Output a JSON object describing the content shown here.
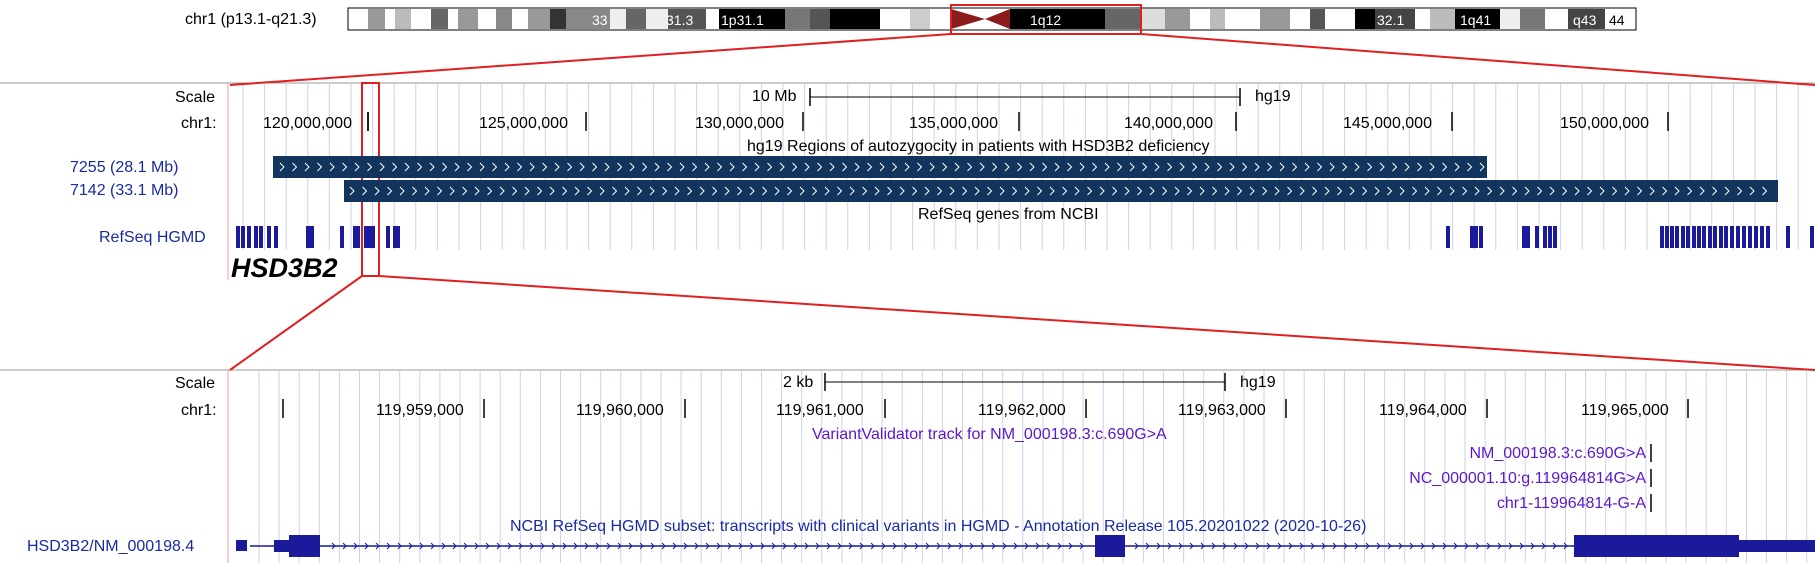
{
  "ideogram": {
    "label": "chr1 (p13.1-q21.3)",
    "bands": [
      "33",
      "31.3",
      "1p31.1",
      "1q12",
      "32.1",
      "1q41",
      "q43",
      "44"
    ]
  },
  "overview": {
    "scale_label": "Scale",
    "scale_value": "10 Mb",
    "assembly": "hg19",
    "chrom_label": "chr1:",
    "ticks": [
      "120,000,000",
      "125,000,000",
      "130,000,000",
      "135,000,000",
      "140,000,000",
      "145,000,000",
      "150,000,000"
    ],
    "autozygosity_title": "hg19 Regions of autozygocity in patients with HSD3B2 deficiency",
    "regions": [
      {
        "name": "7255  (28.1  Mb)"
      },
      {
        "name": "7142  (33.1  Mb)"
      }
    ],
    "refseq_title": "RefSeq genes from NCBI",
    "refseq_track": "RefSeq HGMD",
    "gene_label": "HSD3B2"
  },
  "detail": {
    "scale_label": "Scale",
    "scale_value": "2 kb",
    "assembly": "hg19",
    "chrom_label": "chr1:",
    "ticks": [
      "119,959,000",
      "119,960,000",
      "119,961,000",
      "119,962,000",
      "119,963,000",
      "119,964,000",
      "119,965,000"
    ],
    "vv_title": "VariantValidator track for NM_000198.3:c.690G>A",
    "variants": [
      "NM_000198.3:c.690G>A",
      "NC_000001.10:g.119964814G>A",
      "chr1-119964814-G-A"
    ],
    "hgmd_title": "NCBI RefSeq HGMD subset: transcripts with clinical variants in HGMD - Annotation Release 105.20201022 (2020-10-26)",
    "transcript": "HSD3B2/NM_000198.4"
  },
  "colors": {
    "highlight": "#e02020",
    "track_blue": "#12355e",
    "refseq_blue": "#1a1a9a",
    "grid": "#c8c8ec"
  }
}
